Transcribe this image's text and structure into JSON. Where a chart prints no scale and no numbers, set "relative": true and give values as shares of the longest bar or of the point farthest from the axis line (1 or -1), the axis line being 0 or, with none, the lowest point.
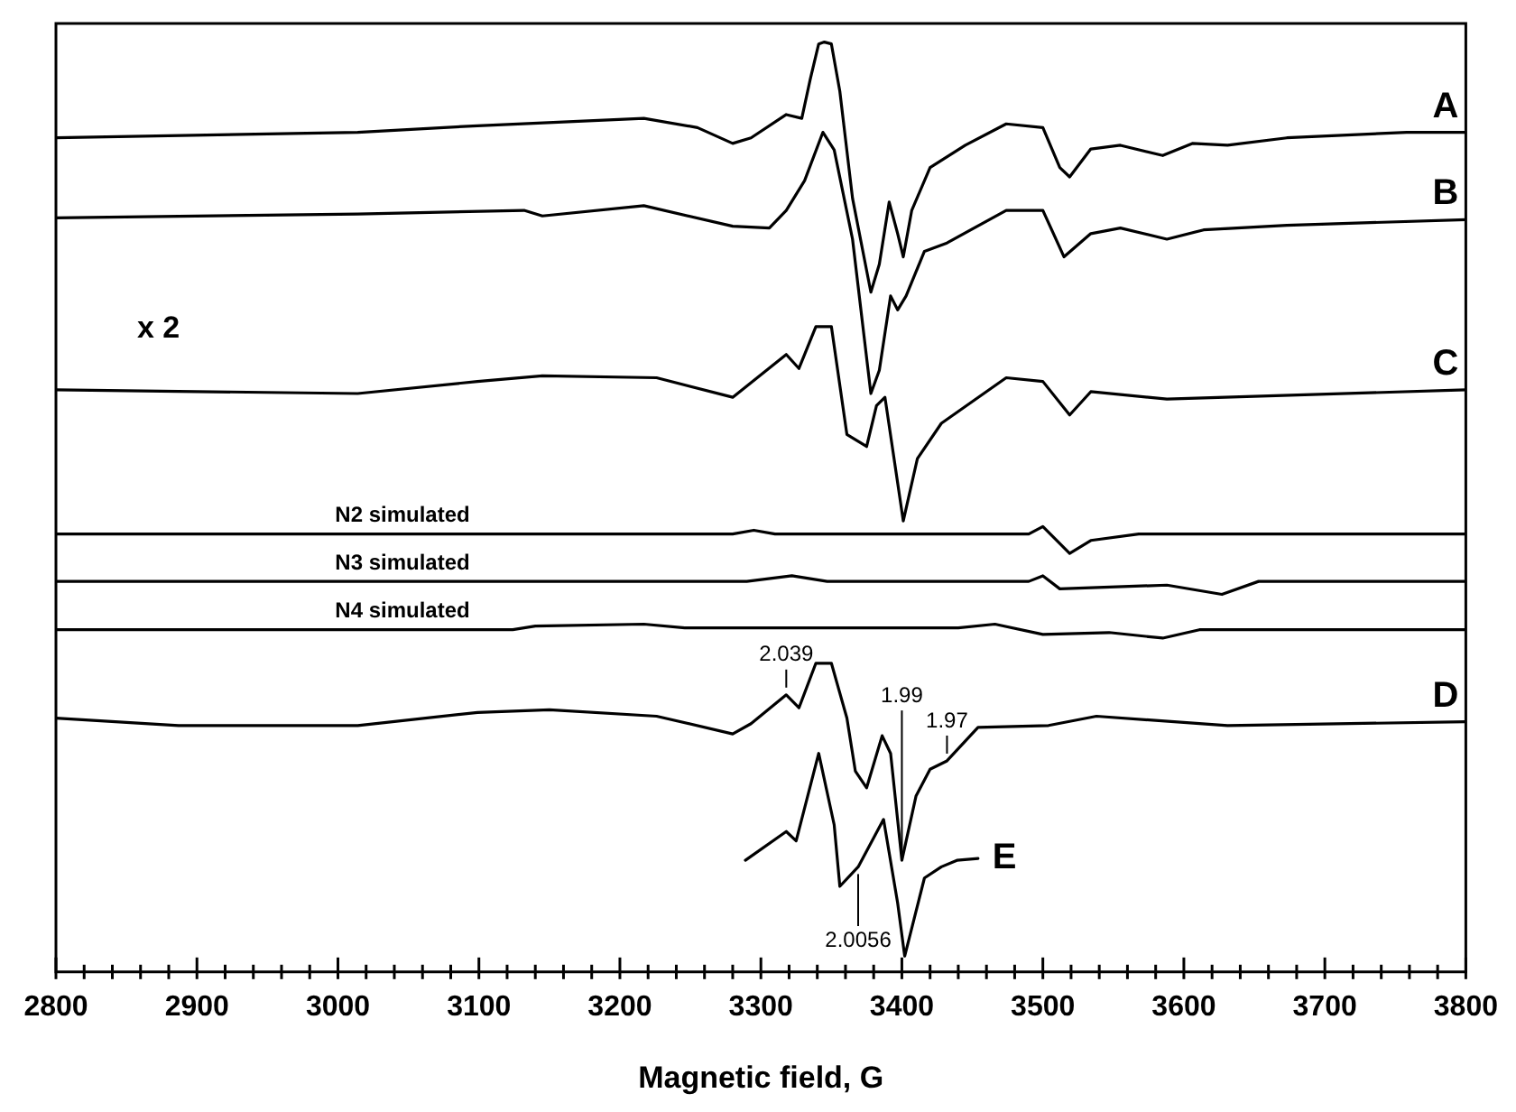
{
  "chart_data": {
    "type": "line",
    "xlabel": "Magnetic field, G",
    "relative": true,
    "xlim": [
      2800,
      3800
    ],
    "xticks": [
      2800,
      {
        "value": 2820,
        "label": null
      },
      {
        "value": 2840,
        "label": null
      },
      {
        "value": 2860,
        "label": null
      },
      {
        "value": 2880,
        "label": null
      },
      2900,
      {
        "value": 2920,
        "label": null
      },
      {
        "value": 2940,
        "label": null
      },
      {
        "value": 2960,
        "label": null
      },
      {
        "value": 2980,
        "label": null
      },
      3000,
      {
        "value": 3020,
        "label": null
      },
      {
        "value": 3040,
        "label": null
      },
      {
        "value": 3060,
        "label": null
      },
      {
        "value": 3080,
        "label": null
      },
      3100,
      {
        "value": 3120,
        "label": null
      },
      {
        "value": 3140,
        "label": null
      },
      {
        "value": 3160,
        "label": null
      },
      {
        "value": 3180,
        "label": null
      },
      3200,
      {
        "value": 3220,
        "label": null
      },
      {
        "value": 3240,
        "label": null
      },
      {
        "value": 3260,
        "label": null
      },
      {
        "value": 3280,
        "label": null
      },
      3300,
      {
        "value": 3320,
        "label": null
      },
      {
        "value": 3340,
        "label": null
      },
      {
        "value": 3360,
        "label": null
      },
      {
        "value": 3380,
        "label": null
      },
      3400,
      {
        "value": 3420,
        "label": null
      },
      {
        "value": 3440,
        "label": null
      },
      {
        "value": 3460,
        "label": null
      },
      {
        "value": 3480,
        "label": null
      },
      3500,
      {
        "value": 3520,
        "label": null
      },
      {
        "value": 3540,
        "label": null
      },
      {
        "value": 3560,
        "label": null
      },
      {
        "value": 3580,
        "label": null
      },
      3600,
      {
        "value": 3620,
        "label": null
      },
      {
        "value": 3640,
        "label": null
      },
      {
        "value": 3660,
        "label": null
      },
      {
        "value": 3680,
        "label": null
      },
      3700,
      {
        "value": 3720,
        "label": null
      },
      {
        "value": 3740,
        "label": null
      },
      {
        "value": 3760,
        "label": null
      },
      {
        "value": 3780,
        "label": null
      },
      3800
    ],
    "grid": false,
    "legend": false,
    "marker": "none",
    "line_style": "solid",
    "series": [
      {
        "name": "A",
        "color": "#000000",
        "x": [
          2800,
          3014,
          3099,
          3217,
          3255,
          3280,
          3293,
          3318,
          3329,
          3335,
          3341,
          3345,
          3350,
          3356,
          3365,
          3378,
          3384,
          3391,
          3397,
          3401,
          3407,
          3420,
          3445,
          3474,
          3500,
          3512,
          3519,
          3534,
          3555,
          3585,
          3606,
          3631,
          3673,
          3758,
          3800
        ],
        "values": [
          0.897,
          0.903,
          0.91,
          0.918,
          0.908,
          0.891,
          0.897,
          0.922,
          0.918,
          0.96,
          0.998,
          1,
          0.998,
          0.947,
          0.832,
          0.731,
          0.761,
          0.828,
          0.794,
          0.769,
          0.819,
          0.865,
          0.889,
          0.912,
          0.908,
          0.865,
          0.855,
          0.885,
          0.889,
          0.878,
          0.891,
          0.889,
          0.897,
          0.903,
          0.903
        ]
      },
      {
        "name": "B",
        "color": "#000000",
        "x": [
          2800,
          3014,
          3132,
          3145,
          3217,
          3280,
          3306,
          3318,
          3331,
          3344,
          3352,
          3365,
          3378,
          3384,
          3392,
          3397,
          3403,
          3416,
          3432,
          3474,
          3500,
          3515,
          3534,
          3555,
          3588,
          3614,
          3673,
          3800
        ],
        "values": [
          0.811,
          0.815,
          0.819,
          0.813,
          0.824,
          0.802,
          0.8,
          0.819,
          0.851,
          0.903,
          0.884,
          0.788,
          0.622,
          0.647,
          0.727,
          0.712,
          0.727,
          0.775,
          0.784,
          0.819,
          0.819,
          0.769,
          0.794,
          0.8,
          0.788,
          0.798,
          0.803,
          0.809
        ]
      },
      {
        "name": "C",
        "color": "#000000",
        "x": [
          2800,
          3014,
          3099,
          3145,
          3226,
          3280,
          3318,
          3327,
          3339,
          3350,
          3361,
          3375,
          3382,
          3388,
          3401,
          3411,
          3428,
          3474,
          3500,
          3519,
          3534,
          3588,
          3800
        ],
        "values": [
          0.626,
          0.622,
          0.635,
          0.641,
          0.639,
          0.618,
          0.664,
          0.649,
          0.694,
          0.694,
          0.578,
          0.565,
          0.609,
          0.618,
          0.485,
          0.552,
          0.59,
          0.639,
          0.635,
          0.599,
          0.624,
          0.616,
          0.626
        ]
      },
      {
        "name": "N2 simulated",
        "color": "#000000",
        "x": [
          2800,
          3280,
          3295,
          3310,
          3490,
          3500,
          3519,
          3534,
          3568,
          3800
        ],
        "values": [
          0.471,
          0.471,
          0.475,
          0.471,
          0.471,
          0.479,
          0.45,
          0.464,
          0.471,
          0.471
        ]
      },
      {
        "name": "N3 simulated",
        "color": "#000000",
        "x": [
          2800,
          3290,
          3322,
          3347,
          3490,
          3500,
          3512,
          3588,
          3627,
          3653,
          3800
        ],
        "values": [
          0.42,
          0.42,
          0.426,
          0.42,
          0.42,
          0.426,
          0.412,
          0.416,
          0.406,
          0.42,
          0.42
        ]
      },
      {
        "name": "N4 simulated",
        "color": "#000000",
        "x": [
          2800,
          3124,
          3140,
          3217,
          3246,
          3440,
          3466,
          3500,
          3547,
          3585,
          3611,
          3800
        ],
        "values": [
          0.368,
          0.368,
          0.372,
          0.374,
          0.37,
          0.37,
          0.374,
          0.363,
          0.365,
          0.359,
          0.368,
          0.368
        ]
      },
      {
        "name": "D",
        "color": "#000000",
        "x": [
          2800,
          2887,
          3014,
          3099,
          3150,
          3226,
          3280,
          3293,
          3318,
          3327,
          3339,
          3350,
          3361,
          3367,
          3375,
          3386,
          3392,
          3400,
          3410,
          3420,
          3432,
          3454,
          3504,
          3538,
          3631,
          3800
        ],
        "values": [
          0.273,
          0.265,
          0.265,
          0.279,
          0.282,
          0.275,
          0.256,
          0.267,
          0.298,
          0.284,
          0.332,
          0.332,
          0.273,
          0.216,
          0.198,
          0.254,
          0.235,
          0.12,
          0.189,
          0.218,
          0.227,
          0.263,
          0.265,
          0.275,
          0.265,
          0.269
        ]
      },
      {
        "name": "E",
        "color": "#000000",
        "x": [
          3289,
          3318,
          3325,
          3341,
          3352,
          3356,
          3369,
          3387,
          3397,
          3402,
          3416,
          3428,
          3439,
          3454
        ],
        "values": [
          0.12,
          0.151,
          0.141,
          0.235,
          0.158,
          0.092,
          0.113,
          0.164,
          0.074,
          0.017,
          0.101,
          0.113,
          0.12,
          0.122
        ]
      }
    ],
    "annotations": [
      "x 2",
      {
        "text": "2.039",
        "x": 3318,
        "y": 0.298
      },
      {
        "text": "1.99",
        "x": 3400,
        "y": 0.12
      },
      {
        "text": "1.97",
        "x": 3432,
        "y": 0.227
      },
      {
        "text": "2.0056",
        "x": 3369,
        "y": 0.113
      }
    ]
  }
}
